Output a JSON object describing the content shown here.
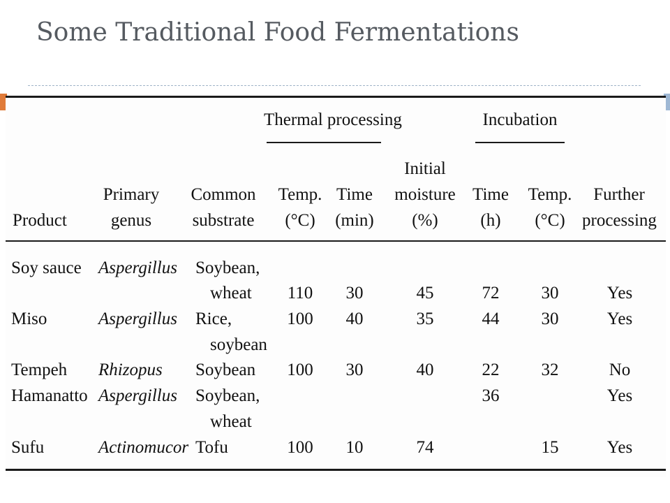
{
  "title": "Some Traditional Food Fermentations",
  "colors": {
    "accent_left": "#e07b39",
    "accent_right": "#9fb8d4",
    "title": "#555a60"
  },
  "table": {
    "groups": {
      "thermal": "Thermal processing",
      "incubation": "Incubation"
    },
    "headers": {
      "product": "Product",
      "genus": "Primary\ngenus",
      "substrate": "Common\nsubstrate",
      "thermal_temp": "Temp.\n(°C)",
      "thermal_time": "Time\n(min)",
      "moisture": "Initial\nmoisture\n(%)",
      "incub_time": "Time\n(h)",
      "incub_temp": "Temp.\n(°C)",
      "further": "Further\nprocessing"
    },
    "rows": [
      {
        "product": "Soy sauce",
        "genus": "Aspergillus",
        "substrate_1": "Soybean,",
        "substrate_2": "wheat",
        "thermal_temp": "110",
        "thermal_time": "30",
        "moisture": "45",
        "incub_time": "72",
        "incub_temp": "30",
        "further": "Yes"
      },
      {
        "product": "Miso",
        "genus": "Aspergillus",
        "substrate_1": "Rice,",
        "substrate_2": "soybean",
        "thermal_temp": "100",
        "thermal_time": "40",
        "moisture": "35",
        "incub_time": "44",
        "incub_temp": "30",
        "further": "Yes"
      },
      {
        "product": "Tempeh",
        "genus": "Rhizopus",
        "substrate_1": "Soybean",
        "thermal_temp": "100",
        "thermal_time": "30",
        "moisture": "40",
        "incub_time": "22",
        "incub_temp": "32",
        "further": "No"
      },
      {
        "product": "Hamanatto",
        "genus": "Aspergillus",
        "substrate_1": "Soybean,",
        "substrate_2": "wheat",
        "incub_time": "36",
        "further": "Yes"
      },
      {
        "product": "Sufu",
        "genus": "Actinomucor",
        "substrate_1": "Tofu",
        "thermal_temp": "100",
        "thermal_time": "10",
        "moisture": "74",
        "incub_temp": "15",
        "further": "Yes"
      }
    ]
  }
}
